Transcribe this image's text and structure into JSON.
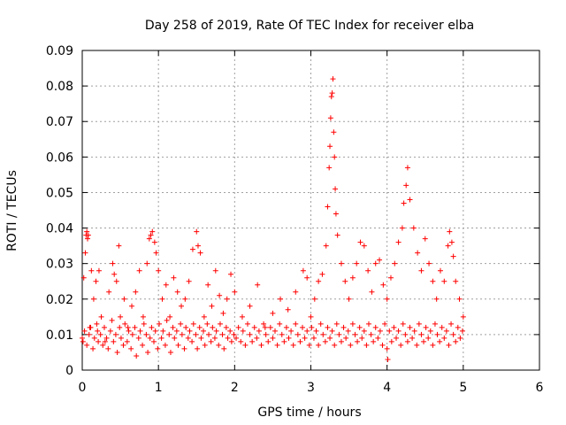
{
  "chart_data": {
    "type": "scatter",
    "title": "Day 258 of 2019, Rate Of TEC Index for receiver elba",
    "xlabel": "GPS time / hours",
    "ylabel": "ROTI / TECUs",
    "xlim": [
      0,
      6
    ],
    "ylim": [
      0,
      0.09
    ],
    "x_ticks": [
      0,
      1,
      2,
      3,
      4,
      5,
      6
    ],
    "x_tick_labels": [
      "0",
      "1",
      "2",
      "3",
      "4",
      "5",
      "6"
    ],
    "y_ticks": [
      0,
      0.01,
      0.02,
      0.03,
      0.04,
      0.05,
      0.06,
      0.07,
      0.08,
      0.09
    ],
    "y_tick_labels": [
      "0",
      "0.01",
      "0.02",
      "0.03",
      "0.04",
      "0.05",
      "0.06",
      "0.07",
      "0.08",
      "0.09"
    ],
    "grid": true,
    "marker": "+",
    "color": "#ff0000",
    "series": [
      {
        "name": "ROTI",
        "points": [
          [
            0.0,
            0.009
          ],
          [
            0.02,
            0.026
          ],
          [
            0.04,
            0.033
          ],
          [
            0.05,
            0.038
          ],
          [
            0.06,
            0.039
          ],
          [
            0.07,
            0.037
          ],
          [
            0.08,
            0.038
          ],
          [
            0.1,
            0.012
          ],
          [
            0.12,
            0.028
          ],
          [
            0.15,
            0.02
          ],
          [
            0.18,
            0.025
          ],
          [
            0.2,
            0.011
          ],
          [
            0.22,
            0.028
          ],
          [
            0.25,
            0.015
          ],
          [
            0.3,
            0.008
          ],
          [
            0.35,
            0.022
          ],
          [
            0.4,
            0.03
          ],
          [
            0.42,
            0.027
          ],
          [
            0.45,
            0.025
          ],
          [
            0.48,
            0.035
          ],
          [
            0.5,
            0.015
          ],
          [
            0.55,
            0.02
          ],
          [
            0.6,
            0.012
          ],
          [
            0.65,
            0.018
          ],
          [
            0.7,
            0.022
          ],
          [
            0.75,
            0.028
          ],
          [
            0.8,
            0.015
          ],
          [
            0.85,
            0.03
          ],
          [
            0.88,
            0.037
          ],
          [
            0.9,
            0.038
          ],
          [
            0.92,
            0.039
          ],
          [
            0.95,
            0.036
          ],
          [
            0.97,
            0.033
          ],
          [
            1.0,
            0.028
          ],
          [
            1.05,
            0.02
          ],
          [
            1.1,
            0.024
          ],
          [
            1.15,
            0.015
          ],
          [
            1.2,
            0.026
          ],
          [
            1.25,
            0.022
          ],
          [
            1.3,
            0.018
          ],
          [
            1.35,
            0.02
          ],
          [
            1.4,
            0.025
          ],
          [
            1.45,
            0.034
          ],
          [
            1.5,
            0.039
          ],
          [
            1.52,
            0.035
          ],
          [
            1.55,
            0.033
          ],
          [
            1.6,
            0.015
          ],
          [
            1.65,
            0.024
          ],
          [
            1.7,
            0.018
          ],
          [
            1.75,
            0.028
          ],
          [
            1.8,
            0.021
          ],
          [
            1.85,
            0.016
          ],
          [
            1.9,
            0.02
          ],
          [
            1.95,
            0.027
          ],
          [
            2.0,
            0.022
          ],
          [
            2.1,
            0.015
          ],
          [
            2.2,
            0.018
          ],
          [
            2.3,
            0.024
          ],
          [
            2.4,
            0.012
          ],
          [
            2.5,
            0.016
          ],
          [
            2.6,
            0.02
          ],
          [
            2.7,
            0.017
          ],
          [
            2.8,
            0.022
          ],
          [
            2.9,
            0.028
          ],
          [
            2.95,
            0.026
          ],
          [
            3.0,
            0.015
          ],
          [
            3.05,
            0.02
          ],
          [
            3.1,
            0.025
          ],
          [
            3.15,
            0.027
          ],
          [
            3.2,
            0.035
          ],
          [
            3.22,
            0.046
          ],
          [
            3.24,
            0.057
          ],
          [
            3.25,
            0.063
          ],
          [
            3.26,
            0.071
          ],
          [
            3.27,
            0.077
          ],
          [
            3.28,
            0.078
          ],
          [
            3.29,
            0.082
          ],
          [
            3.3,
            0.067
          ],
          [
            3.31,
            0.06
          ],
          [
            3.32,
            0.051
          ],
          [
            3.33,
            0.044
          ],
          [
            3.35,
            0.038
          ],
          [
            3.4,
            0.03
          ],
          [
            3.45,
            0.025
          ],
          [
            3.5,
            0.02
          ],
          [
            3.55,
            0.026
          ],
          [
            3.6,
            0.03
          ],
          [
            3.65,
            0.036
          ],
          [
            3.7,
            0.035
          ],
          [
            3.75,
            0.028
          ],
          [
            3.8,
            0.022
          ],
          [
            3.85,
            0.03
          ],
          [
            3.9,
            0.031
          ],
          [
            3.95,
            0.024
          ],
          [
            4.0,
            0.02
          ],
          [
            4.05,
            0.026
          ],
          [
            4.1,
            0.03
          ],
          [
            4.15,
            0.036
          ],
          [
            4.2,
            0.04
          ],
          [
            4.22,
            0.047
          ],
          [
            4.25,
            0.052
          ],
          [
            4.27,
            0.057
          ],
          [
            4.3,
            0.048
          ],
          [
            4.35,
            0.04
          ],
          [
            4.4,
            0.033
          ],
          [
            4.45,
            0.028
          ],
          [
            4.5,
            0.037
          ],
          [
            4.55,
            0.03
          ],
          [
            4.6,
            0.025
          ],
          [
            4.65,
            0.02
          ],
          [
            4.7,
            0.028
          ],
          [
            4.75,
            0.025
          ],
          [
            4.8,
            0.035
          ],
          [
            4.82,
            0.039
          ],
          [
            4.85,
            0.036
          ],
          [
            4.87,
            0.032
          ],
          [
            4.9,
            0.025
          ],
          [
            4.95,
            0.02
          ],
          [
            5.0,
            0.015
          ],
          [
            0.01,
            0.008
          ],
          [
            0.03,
            0.011
          ],
          [
            0.06,
            0.007
          ],
          [
            0.09,
            0.01
          ],
          [
            0.11,
            0.012
          ],
          [
            0.14,
            0.006
          ],
          [
            0.16,
            0.009
          ],
          [
            0.19,
            0.013
          ],
          [
            0.21,
            0.008
          ],
          [
            0.24,
            0.01
          ],
          [
            0.27,
            0.007
          ],
          [
            0.29,
            0.012
          ],
          [
            0.32,
            0.009
          ],
          [
            0.34,
            0.006
          ],
          [
            0.37,
            0.011
          ],
          [
            0.39,
            0.014
          ],
          [
            0.41,
            0.008
          ],
          [
            0.44,
            0.01
          ],
          [
            0.46,
            0.005
          ],
          [
            0.49,
            0.012
          ],
          [
            0.51,
            0.009
          ],
          [
            0.54,
            0.007
          ],
          [
            0.56,
            0.013
          ],
          [
            0.59,
            0.008
          ],
          [
            0.61,
            0.011
          ],
          [
            0.64,
            0.006
          ],
          [
            0.66,
            0.01
          ],
          [
            0.69,
            0.012
          ],
          [
            0.71,
            0.004
          ],
          [
            0.74,
            0.009
          ],
          [
            0.76,
            0.011
          ],
          [
            0.79,
            0.007
          ],
          [
            0.81,
            0.013
          ],
          [
            0.84,
            0.01
          ],
          [
            0.86,
            0.005
          ],
          [
            0.89,
            0.009
          ],
          [
            0.91,
            0.012
          ],
          [
            0.94,
            0.008
          ],
          [
            0.96,
            0.011
          ],
          [
            0.99,
            0.006
          ],
          [
            1.01,
            0.013
          ],
          [
            1.04,
            0.009
          ],
          [
            1.06,
            0.011
          ],
          [
            1.09,
            0.007
          ],
          [
            1.11,
            0.014
          ],
          [
            1.14,
            0.01
          ],
          [
            1.16,
            0.005
          ],
          [
            1.19,
            0.012
          ],
          [
            1.21,
            0.009
          ],
          [
            1.24,
            0.011
          ],
          [
            1.26,
            0.007
          ],
          [
            1.29,
            0.013
          ],
          [
            1.31,
            0.01
          ],
          [
            1.34,
            0.006
          ],
          [
            1.36,
            0.012
          ],
          [
            1.39,
            0.009
          ],
          [
            1.41,
            0.011
          ],
          [
            1.44,
            0.008
          ],
          [
            1.46,
            0.013
          ],
          [
            1.49,
            0.01
          ],
          [
            1.51,
            0.006
          ],
          [
            1.54,
            0.012
          ],
          [
            1.56,
            0.009
          ],
          [
            1.59,
            0.011
          ],
          [
            1.61,
            0.007
          ],
          [
            1.64,
            0.013
          ],
          [
            1.66,
            0.01
          ],
          [
            1.69,
            0.008
          ],
          [
            1.71,
            0.012
          ],
          [
            1.74,
            0.009
          ],
          [
            1.76,
            0.011
          ],
          [
            1.79,
            0.007
          ],
          [
            1.81,
            0.013
          ],
          [
            1.84,
            0.01
          ],
          [
            1.86,
            0.006
          ],
          [
            1.89,
            0.012
          ],
          [
            1.91,
            0.009
          ],
          [
            1.94,
            0.011
          ],
          [
            1.96,
            0.008
          ],
          [
            1.99,
            0.01
          ],
          [
            2.02,
            0.009
          ],
          [
            2.05,
            0.012
          ],
          [
            2.08,
            0.008
          ],
          [
            2.11,
            0.011
          ],
          [
            2.14,
            0.007
          ],
          [
            2.17,
            0.013
          ],
          [
            2.2,
            0.01
          ],
          [
            2.23,
            0.008
          ],
          [
            2.26,
            0.012
          ],
          [
            2.29,
            0.009
          ],
          [
            2.32,
            0.011
          ],
          [
            2.35,
            0.007
          ],
          [
            2.38,
            0.013
          ],
          [
            2.41,
            0.01
          ],
          [
            2.44,
            0.008
          ],
          [
            2.47,
            0.012
          ],
          [
            2.5,
            0.009
          ],
          [
            2.53,
            0.011
          ],
          [
            2.56,
            0.007
          ],
          [
            2.59,
            0.013
          ],
          [
            2.62,
            0.01
          ],
          [
            2.65,
            0.008
          ],
          [
            2.68,
            0.012
          ],
          [
            2.71,
            0.009
          ],
          [
            2.74,
            0.011
          ],
          [
            2.77,
            0.007
          ],
          [
            2.8,
            0.013
          ],
          [
            2.83,
            0.01
          ],
          [
            2.86,
            0.008
          ],
          [
            2.89,
            0.012
          ],
          [
            2.92,
            0.009
          ],
          [
            2.95,
            0.011
          ],
          [
            2.98,
            0.007
          ],
          [
            3.01,
            0.012
          ],
          [
            3.04,
            0.009
          ],
          [
            3.07,
            0.011
          ],
          [
            3.1,
            0.007
          ],
          [
            3.13,
            0.013
          ],
          [
            3.16,
            0.01
          ],
          [
            3.19,
            0.008
          ],
          [
            3.22,
            0.012
          ],
          [
            3.25,
            0.009
          ],
          [
            3.28,
            0.011
          ],
          [
            3.31,
            0.007
          ],
          [
            3.34,
            0.013
          ],
          [
            3.37,
            0.01
          ],
          [
            3.4,
            0.008
          ],
          [
            3.43,
            0.012
          ],
          [
            3.46,
            0.009
          ],
          [
            3.49,
            0.011
          ],
          [
            3.52,
            0.007
          ],
          [
            3.55,
            0.013
          ],
          [
            3.58,
            0.01
          ],
          [
            3.61,
            0.008
          ],
          [
            3.64,
            0.012
          ],
          [
            3.67,
            0.009
          ],
          [
            3.7,
            0.011
          ],
          [
            3.73,
            0.007
          ],
          [
            3.76,
            0.013
          ],
          [
            3.79,
            0.01
          ],
          [
            3.82,
            0.008
          ],
          [
            3.85,
            0.012
          ],
          [
            3.88,
            0.009
          ],
          [
            3.91,
            0.011
          ],
          [
            3.94,
            0.007
          ],
          [
            3.97,
            0.013
          ],
          [
            4.0,
            0.006
          ],
          [
            4.01,
            0.003
          ],
          [
            4.03,
            0.011
          ],
          [
            4.06,
            0.008
          ],
          [
            4.09,
            0.012
          ],
          [
            4.12,
            0.009
          ],
          [
            4.15,
            0.011
          ],
          [
            4.18,
            0.007
          ],
          [
            4.21,
            0.013
          ],
          [
            4.24,
            0.01
          ],
          [
            4.27,
            0.008
          ],
          [
            4.3,
            0.012
          ],
          [
            4.33,
            0.009
          ],
          [
            4.36,
            0.011
          ],
          [
            4.39,
            0.007
          ],
          [
            4.42,
            0.013
          ],
          [
            4.45,
            0.01
          ],
          [
            4.48,
            0.008
          ],
          [
            4.51,
            0.012
          ],
          [
            4.54,
            0.009
          ],
          [
            4.57,
            0.011
          ],
          [
            4.6,
            0.007
          ],
          [
            4.63,
            0.013
          ],
          [
            4.66,
            0.01
          ],
          [
            4.69,
            0.008
          ],
          [
            4.72,
            0.012
          ],
          [
            4.75,
            0.009
          ],
          [
            4.78,
            0.011
          ],
          [
            4.81,
            0.007
          ],
          [
            4.84,
            0.013
          ],
          [
            4.87,
            0.01
          ],
          [
            4.9,
            0.008
          ],
          [
            4.93,
            0.012
          ],
          [
            4.96,
            0.009
          ],
          [
            4.99,
            0.011
          ]
        ]
      }
    ]
  }
}
